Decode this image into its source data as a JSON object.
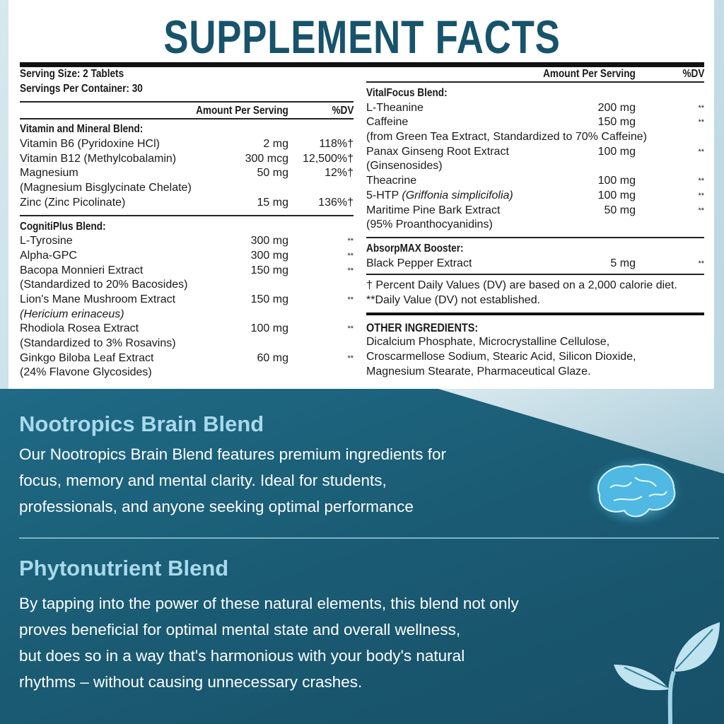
{
  "title": "SUPPLEMENT FACTS",
  "serving_size": "Serving Size: 2 Tablets",
  "servings_per_container": "Servings Per Container: 30",
  "header": {
    "amount": "Amount Per Serving",
    "dv": "%DV"
  },
  "left_blends": [
    {
      "name": "Vitamin and Mineral Blend:",
      "items": [
        {
          "name": "Vitamin B6 (Pyridoxine HCl)",
          "amount": "2 mg",
          "dv": "118%†"
        },
        {
          "name": "Vitamin B12 (Methylcobalamin)",
          "amount": "300 mcg",
          "dv": "12,500%†"
        },
        {
          "name": "Magnesium",
          "amount": "50 mg",
          "dv": "12%†"
        },
        {
          "name": "(Magnesium Bisglycinate Chelate)",
          "amount": "",
          "dv": ""
        },
        {
          "name": "Zinc (Zinc Picolinate)",
          "amount": "15 mg",
          "dv": "136%†"
        }
      ]
    },
    {
      "name": "CognitiPlus Blend:",
      "items": [
        {
          "name": "L-Tyrosine",
          "amount": "300 mg",
          "dv": "**"
        },
        {
          "name": "Alpha-GPC",
          "amount": "300 mg",
          "dv": "**"
        },
        {
          "name": "Bacopa Monnieri Extract",
          "amount": "150 mg",
          "dv": "**"
        },
        {
          "name": "(Standardized to 20% Bacosides)",
          "amount": "",
          "dv": ""
        },
        {
          "name": "Lion's Mane Mushroom Extract",
          "amount": "150 mg",
          "dv": "**"
        },
        {
          "name": "(Hericium erinaceus)",
          "amount": "",
          "dv": "",
          "italic": true
        },
        {
          "name": "Rhodiola Rosea Extract",
          "amount": "100 mg",
          "dv": "**"
        },
        {
          "name": "(Standardized to 3% Rosavins)",
          "amount": "",
          "dv": ""
        },
        {
          "name": "Ginkgo Biloba Leaf Extract",
          "amount": "60 mg",
          "dv": "**"
        },
        {
          "name": "(24% Flavone Glycosides)",
          "amount": "",
          "dv": ""
        }
      ]
    }
  ],
  "right_blends": [
    {
      "name": "VitalFocus Blend:",
      "items": [
        {
          "name": "L-Theanine",
          "amount": "200 mg",
          "dv": "**"
        },
        {
          "name": "Caffeine",
          "amount": "150 mg",
          "dv": "**"
        },
        {
          "name": "(from Green Tea Extract, Standardized to 70% Caffeine)",
          "amount": "",
          "dv": ""
        },
        {
          "name": "Panax Ginseng Root Extract",
          "amount": "100 mg",
          "dv": "**"
        },
        {
          "name": "(Ginsenosides)",
          "amount": "",
          "dv": ""
        },
        {
          "name": "Theacrine",
          "amount": "100 mg",
          "dv": "**"
        },
        {
          "name": "5-HTP",
          "name_italic": "(Griffonia simplicifolia)",
          "amount": "100 mg",
          "dv": "**"
        },
        {
          "name": "Maritime Pine Bark Extract",
          "amount": "50 mg",
          "dv": "**"
        },
        {
          "name": "(95% Proanthocyanidins)",
          "amount": "",
          "dv": ""
        }
      ]
    },
    {
      "name": "AbsorpMAX Booster:",
      "items": [
        {
          "name": "Black Pepper Extract",
          "amount": "5 mg",
          "dv": "**"
        }
      ]
    }
  ],
  "footnotes": [
    "† Percent Daily Values (DV) are based on a 2,000 calorie diet.",
    "**Daily Value (DV) not established."
  ],
  "other_ingredients": {
    "heading": "OTHER INGREDIENTS:",
    "lines": [
      "Dicalcium Phosphate, Microcrystalline Cellulose,",
      "Croscarmellose Sodium, Stearic Acid, Silicon Dioxide,",
      "Magnesium Stearate, Pharmaceutical Glaze."
    ]
  },
  "sections": [
    {
      "heading": "Nootropics Brain Blend",
      "lines": [
        "Our Nootropics Brain Blend features premium ingredients for",
        "focus, memory and mental clarity. Ideal for students,",
        "professionals, and anyone seeking optimal performance"
      ]
    },
    {
      "heading": "Phytonutrient Blend",
      "lines": [
        "By tapping into the power of these natural elements, this blend not only",
        "proves beneficial for optimal mental state and overall wellness,",
        "but does so in a way that's harmonious with your body's natural",
        "rhythms – without causing unnecessary crashes."
      ]
    }
  ],
  "icons": [
    "brain-icon",
    "leaf-sprout-icon"
  ],
  "colors": {
    "title": "#17536b",
    "panel_bottom": "#1a5b73",
    "heading": "#a9d9ec"
  }
}
